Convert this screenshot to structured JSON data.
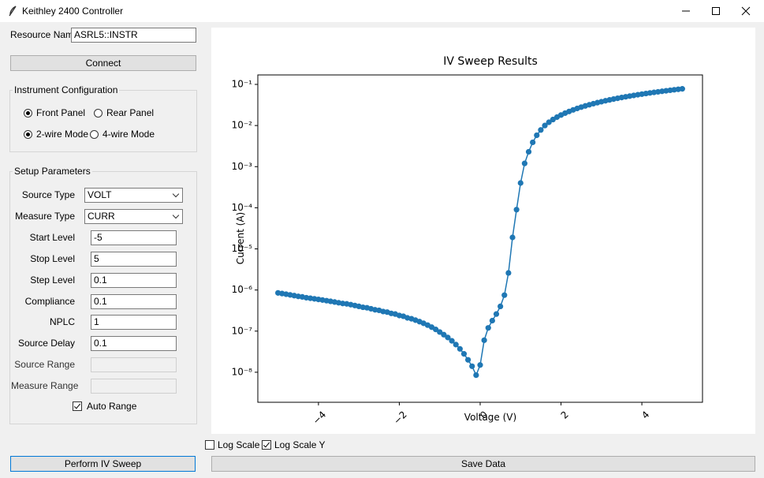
{
  "window": {
    "title": "Keithley 2400 Controller"
  },
  "resource": {
    "label": "Resource Name:",
    "value": "ASRL5::INSTR"
  },
  "connect_button": "Connect",
  "instrument_config": {
    "title": "Instrument Configuration",
    "options": [
      {
        "label": "Front Panel",
        "selected": true
      },
      {
        "label": "Rear Panel",
        "selected": false
      },
      {
        "label": "2-wire Mode",
        "selected": true
      },
      {
        "label": "4-wire Mode",
        "selected": false
      }
    ]
  },
  "setup": {
    "title": "Setup Parameters",
    "dropdowns": [
      {
        "label": "Source Type",
        "value": "VOLT"
      },
      {
        "label": "Measure Type",
        "value": "CURR"
      }
    ],
    "entries": [
      {
        "label": "Start Level",
        "value": "-5"
      },
      {
        "label": "Stop Level",
        "value": "5"
      },
      {
        "label": "Step Level",
        "value": "0.1"
      },
      {
        "label": "Compliance",
        "value": "0.1"
      },
      {
        "label": "NPLC",
        "value": "1"
      },
      {
        "label": "Source Delay",
        "value": "0.1"
      },
      {
        "label": "Source Range",
        "disabled": true
      },
      {
        "label": "Measure Range",
        "disabled": true
      }
    ],
    "auto_range": {
      "label": "Auto Range",
      "checked": true
    }
  },
  "perform_button": "Perform IV Sweep",
  "log_scale_x": {
    "label": "Log Scale X",
    "checked": false
  },
  "log_scale_y": {
    "label": "Log Scale Y",
    "checked": true
  },
  "save_button": "Save Data",
  "chart_data": {
    "type": "line",
    "title": "IV Sweep Results",
    "x_label": "Voltage (V)",
    "y_label": "Current (A)",
    "color": "#1f77b4",
    "markers": true,
    "y_scale": "log",
    "grid": false,
    "xtick_rotation": 45,
    "x": [
      -5.0,
      -4.9,
      -4.8,
      -4.7,
      -4.6,
      -4.5,
      -4.4,
      -4.3,
      -4.2,
      -4.1,
      -4.0,
      -3.9,
      -3.8,
      -3.7,
      -3.6,
      -3.5,
      -3.4,
      -3.3,
      -3.2,
      -3.1,
      -3.0,
      -2.9,
      -2.8,
      -2.7,
      -2.6,
      -2.5,
      -2.4,
      -2.3,
      -2.2,
      -2.1,
      -2.0,
      -1.9,
      -1.8,
      -1.7,
      -1.6,
      -1.5,
      -1.4,
      -1.3,
      -1.2,
      -1.1,
      -1.0,
      -0.9,
      -0.8,
      -0.7,
      -0.6,
      -0.5,
      -0.4,
      -0.3,
      -0.2,
      -0.1,
      0.0,
      0.1,
      0.2,
      0.3,
      0.4,
      0.5,
      0.6,
      0.7,
      0.8,
      0.9,
      1.0,
      1.1,
      1.2,
      1.3,
      1.4,
      1.5,
      1.6,
      1.7,
      1.8,
      1.9,
      2.0,
      2.1,
      2.2,
      2.3,
      2.4,
      2.5,
      2.6,
      2.7,
      2.8,
      2.9,
      3.0,
      3.1,
      3.2,
      3.3,
      3.4,
      3.5,
      3.6,
      3.7,
      3.8,
      3.9,
      4.0,
      4.1,
      4.2,
      4.3,
      4.4,
      4.5,
      4.6,
      4.7,
      4.8,
      4.9,
      5.0
    ],
    "values": [
      8.5e-07,
      8.2e-07,
      7.9e-07,
      7.6e-07,
      7.3e-07,
      7e-07,
      6.8e-07,
      6.5e-07,
      6.3e-07,
      6.1e-07,
      5.9e-07,
      5.7e-07,
      5.5e-07,
      5.3e-07,
      5.1e-07,
      4.9e-07,
      4.7e-07,
      4.6e-07,
      4.4e-07,
      4.2e-07,
      4e-07,
      3.8e-07,
      3.7e-07,
      3.5e-07,
      3.3e-07,
      3.2e-07,
      3e-07,
      2.9e-07,
      2.7e-07,
      2.6e-07,
      2.4e-07,
      2.3e-07,
      2.1e-07,
      2e-07,
      1.85e-07,
      1.7e-07,
      1.55e-07,
      1.4e-07,
      1.25e-07,
      1.1e-07,
      9.5e-08,
      8.2e-08,
      7e-08,
      5.8e-08,
      4.7e-08,
      3.7e-08,
      2.8e-08,
      2e-08,
      1.4e-08,
      8.5e-09,
      1.5e-08,
      6e-08,
      1.2e-07,
      1.8e-07,
      2.6e-07,
      4e-07,
      7.5e-07,
      2.6e-06,
      1.9e-05,
      9e-05,
      0.0004,
      0.0012,
      0.0023,
      0.0039,
      0.0058,
      0.0078,
      0.01,
      0.012,
      0.014,
      0.016,
      0.018,
      0.02,
      0.022,
      0.024,
      0.026,
      0.028,
      0.03,
      0.032,
      0.034,
      0.036,
      0.038,
      0.04,
      0.042,
      0.044,
      0.046,
      0.048,
      0.05,
      0.052,
      0.054,
      0.056,
      0.058,
      0.06,
      0.062,
      0.064,
      0.066,
      0.068,
      0.07,
      0.072,
      0.074,
      0.076,
      0.078
    ],
    "xlim": [
      -5.5,
      5.5
    ],
    "ylim": [
      1.86e-09,
      0.17
    ],
    "xticks": [
      {
        "value": -4,
        "label": "−4"
      },
      {
        "value": -2,
        "label": "−2"
      },
      0,
      2,
      4
    ],
    "yticks": [
      {
        "value": 1e-08,
        "label": "10⁻⁸"
      },
      {
        "value": 1e-07,
        "label": "10⁻⁷"
      },
      {
        "value": 1e-06,
        "label": "10⁻⁶"
      },
      {
        "value": 1e-05,
        "label": "10⁻⁵"
      },
      {
        "value": 0.0001,
        "label": "10⁻⁴"
      },
      {
        "value": 0.001,
        "label": "10⁻³"
      },
      {
        "value": 0.01,
        "label": "10⁻²"
      },
      {
        "value": 0.1,
        "label": "10⁻¹"
      }
    ]
  }
}
